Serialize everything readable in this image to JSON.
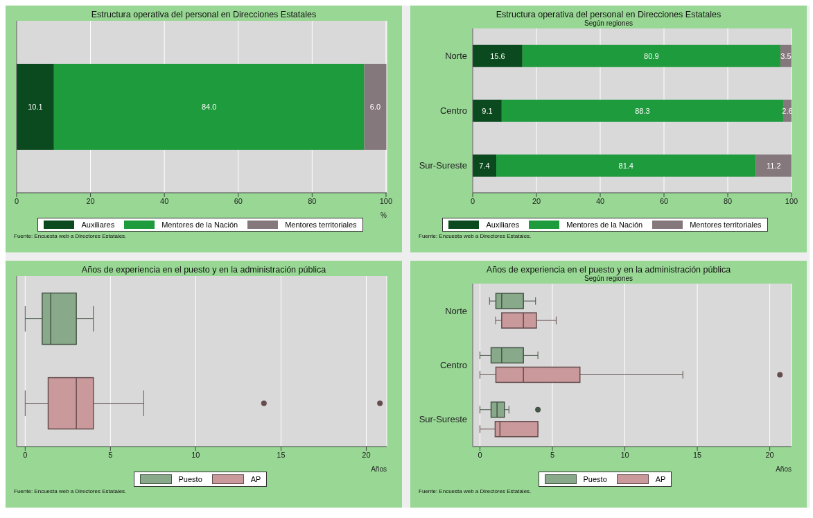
{
  "chart_data": [
    {
      "type": "bar",
      "orientation": "horizontal",
      "stacked": true,
      "title": "Estructura operativa del personal en Direcciones Estatales",
      "categories": [
        null
      ],
      "series": [
        {
          "name": "Auxiliares",
          "color": "#0b4a1e",
          "values": [
            10.1
          ],
          "value_labels": [
            "10.1"
          ]
        },
        {
          "name": "Mentores de la Nación",
          "color": "#1e9b3c",
          "values": [
            84.0
          ],
          "value_labels": [
            "84.0"
          ]
        },
        {
          "name": "Mentores territoriales",
          "color": "#85787c",
          "values": [
            6.0
          ],
          "value_labels": [
            "6.0"
          ]
        }
      ],
      "xlim": [
        0,
        100.2
      ],
      "xticks": [
        0,
        20,
        40,
        60,
        80,
        100
      ],
      "xlabel": "%",
      "grid": "x",
      "legend": "bottom",
      "annotations": [
        "Fuente: Encuesta web a Directores Estatales."
      ]
    },
    {
      "type": "bar",
      "orientation": "horizontal",
      "stacked": true,
      "title": "Estructura operativa del personal en Direcciones Estatales",
      "subtitle": "Según regiones",
      "categories": [
        "Norte",
        "Centro",
        "Sur-Sureste"
      ],
      "series": [
        {
          "name": "Auxiliares",
          "color": "#0b4a1e",
          "values": [
            15.6,
            9.1,
            7.4
          ],
          "value_labels": [
            "15.6",
            "9.1",
            "7.4"
          ]
        },
        {
          "name": "Mentores de la Nación",
          "color": "#1e9b3c",
          "values": [
            80.9,
            88.3,
            81.4
          ],
          "value_labels": [
            "80.9",
            "88.3",
            "81.4"
          ]
        },
        {
          "name": "Mentores territoriales",
          "color": "#85787c",
          "values": [
            3.5,
            2.6,
            11.2
          ],
          "value_labels": [
            "3.5",
            "2.6",
            "11.2"
          ]
        }
      ],
      "xlim": [
        0,
        100
      ],
      "xticks": [
        0,
        20,
        40,
        60,
        80,
        100
      ],
      "grid": "x",
      "legend": "bottom",
      "annotations": [
        "Fuente: Encuesta web a Directores Estatales."
      ]
    },
    {
      "type": "box",
      "orientation": "horizontal",
      "title": "Años de experiencia en el puesto y en la administración pública",
      "categories": [
        null
      ],
      "series": [
        {
          "name": "Puesto",
          "color": "#88a98a",
          "boxes": [
            {
              "low": 0,
              "q1": 1,
              "median": 1.5,
              "q3": 3,
              "high": 4
            }
          ]
        },
        {
          "name": "AP",
          "color": "#c9999c",
          "boxes": [
            {
              "low": 0,
              "q1": 1.35,
              "median": 3,
              "q3": 4,
              "high": 6.95,
              "outliers": [
                14,
                20.8
              ]
            }
          ]
        }
      ],
      "xlim": [
        -0.5,
        21.2
      ],
      "xticks": [
        0,
        5,
        10,
        15,
        20
      ],
      "xlabel": "Años",
      "grid": "x",
      "legend": "bottom",
      "annotations": [
        "Fuente: Encuesta web a Directores Estatales."
      ]
    },
    {
      "type": "box",
      "orientation": "horizontal",
      "title": "Años de experiencia en el puesto y en la administración pública",
      "subtitle": "Según regiones",
      "categories": [
        "Norte",
        "Centro",
        "Sur-Sureste"
      ],
      "series": [
        {
          "name": "Puesto",
          "color": "#88a98a",
          "boxes": [
            {
              "low": 0.66,
              "q1": 1.1,
              "median": 1.5,
              "q3": 3,
              "high": 3.84
            },
            {
              "low": 0,
              "q1": 0.77,
              "median": 1.5,
              "q3": 3,
              "high": 4
            },
            {
              "low": 0,
              "q1": 0.77,
              "median": 1.18,
              "q3": 1.69,
              "high": 2,
              "outliers": [
                4
              ]
            }
          ]
        },
        {
          "name": "AP",
          "color": "#c9999c",
          "boxes": [
            {
              "low": 1.08,
              "q1": 1.5,
              "median": 3,
              "q3": 3.9,
              "high": 5.26
            },
            {
              "low": 0,
              "q1": 1.1,
              "median": 3,
              "q3": 6.9,
              "high": 14,
              "outliers": [
                20.7
              ]
            },
            {
              "low": 0,
              "q1": 1.05,
              "median": 1.38,
              "q3": 4,
              "high": 4
            }
          ]
        }
      ],
      "xlim": [
        -0.5,
        21.5
      ],
      "xticks": [
        0,
        5,
        10,
        15,
        20
      ],
      "xlabel": "Años",
      "grid": "x",
      "legend": "bottom",
      "annotations": [
        "Fuente: Encuesta web a Directores Estatales."
      ]
    }
  ]
}
